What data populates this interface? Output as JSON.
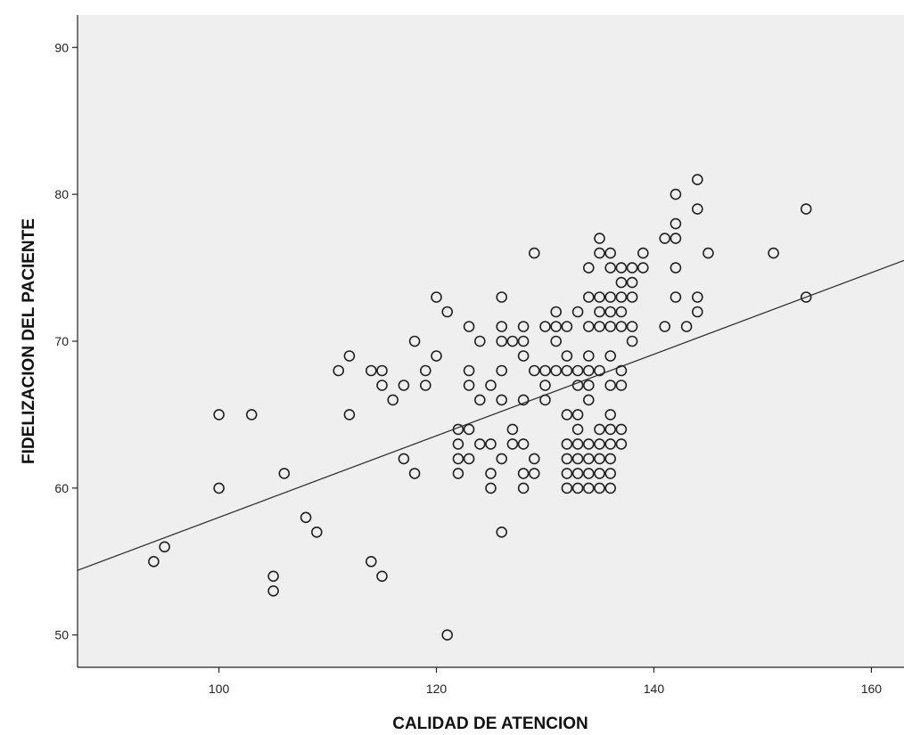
{
  "chart_data": {
    "type": "scatter",
    "title": "",
    "xlabel": "CALIDAD DE ATENCION",
    "ylabel": "FIDELIZACION DEL PACIENTE",
    "xlim": [
      87,
      163
    ],
    "ylim": [
      47.8,
      92.2
    ],
    "x_ticks": [
      100,
      120,
      140,
      160
    ],
    "y_ticks": [
      50,
      60,
      70,
      80,
      90
    ],
    "grid": false,
    "background": "#efefef",
    "fit_line": {
      "x": [
        87,
        163
      ],
      "y": [
        54.4,
        75.5
      ]
    },
    "points": [
      [
        94,
        55
      ],
      [
        95,
        56
      ],
      [
        100,
        65
      ],
      [
        100,
        60
      ],
      [
        103,
        65
      ],
      [
        105,
        54
      ],
      [
        105,
        53
      ],
      [
        106,
        61
      ],
      [
        108,
        58
      ],
      [
        109,
        57
      ],
      [
        111,
        68
      ],
      [
        112,
        69
      ],
      [
        112,
        65
      ],
      [
        114,
        68
      ],
      [
        114,
        55
      ],
      [
        115,
        68
      ],
      [
        115,
        67
      ],
      [
        115,
        54
      ],
      [
        116,
        66
      ],
      [
        117,
        67
      ],
      [
        117,
        62
      ],
      [
        118,
        70
      ],
      [
        118,
        61
      ],
      [
        119,
        68
      ],
      [
        119,
        67
      ],
      [
        120,
        73
      ],
      [
        120,
        69
      ],
      [
        121,
        72
      ],
      [
        121,
        50
      ],
      [
        122,
        64
      ],
      [
        122,
        63
      ],
      [
        122,
        62
      ],
      [
        122,
        61
      ],
      [
        123,
        71
      ],
      [
        123,
        68
      ],
      [
        123,
        67
      ],
      [
        123,
        64
      ],
      [
        123,
        62
      ],
      [
        124,
        70
      ],
      [
        124,
        66
      ],
      [
        124,
        63
      ],
      [
        125,
        67
      ],
      [
        125,
        63
      ],
      [
        125,
        61
      ],
      [
        125,
        60
      ],
      [
        126,
        73
      ],
      [
        126,
        71
      ],
      [
        126,
        70
      ],
      [
        126,
        68
      ],
      [
        126,
        66
      ],
      [
        126,
        62
      ],
      [
        126,
        57
      ],
      [
        127,
        70
      ],
      [
        127,
        64
      ],
      [
        127,
        63
      ],
      [
        128,
        71
      ],
      [
        128,
        70
      ],
      [
        128,
        69
      ],
      [
        128,
        66
      ],
      [
        128,
        63
      ],
      [
        128,
        61
      ],
      [
        128,
        60
      ],
      [
        129,
        76
      ],
      [
        129,
        68
      ],
      [
        129,
        62
      ],
      [
        129,
        61
      ],
      [
        130,
        71
      ],
      [
        130,
        68
      ],
      [
        130,
        67
      ],
      [
        130,
        66
      ],
      [
        131,
        72
      ],
      [
        131,
        71
      ],
      [
        131,
        70
      ],
      [
        131,
        68
      ],
      [
        132,
        71
      ],
      [
        132,
        69
      ],
      [
        132,
        68
      ],
      [
        132,
        65
      ],
      [
        132,
        63
      ],
      [
        132,
        62
      ],
      [
        132,
        61
      ],
      [
        132,
        60
      ],
      [
        133,
        72
      ],
      [
        133,
        68
      ],
      [
        133,
        67
      ],
      [
        133,
        65
      ],
      [
        133,
        64
      ],
      [
        133,
        63
      ],
      [
        133,
        62
      ],
      [
        133,
        61
      ],
      [
        133,
        60
      ],
      [
        134,
        75
      ],
      [
        134,
        73
      ],
      [
        134,
        71
      ],
      [
        134,
        69
      ],
      [
        134,
        68
      ],
      [
        134,
        67
      ],
      [
        134,
        66
      ],
      [
        134,
        63
      ],
      [
        134,
        62
      ],
      [
        134,
        61
      ],
      [
        134,
        60
      ],
      [
        135,
        77
      ],
      [
        135,
        76
      ],
      [
        135,
        73
      ],
      [
        135,
        72
      ],
      [
        135,
        71
      ],
      [
        135,
        68
      ],
      [
        135,
        64
      ],
      [
        135,
        63
      ],
      [
        135,
        62
      ],
      [
        135,
        61
      ],
      [
        135,
        60
      ],
      [
        136,
        76
      ],
      [
        136,
        75
      ],
      [
        136,
        73
      ],
      [
        136,
        72
      ],
      [
        136,
        71
      ],
      [
        136,
        69
      ],
      [
        136,
        67
      ],
      [
        136,
        65
      ],
      [
        136,
        64
      ],
      [
        136,
        63
      ],
      [
        136,
        62
      ],
      [
        136,
        61
      ],
      [
        136,
        60
      ],
      [
        137,
        75
      ],
      [
        137,
        74
      ],
      [
        137,
        73
      ],
      [
        137,
        72
      ],
      [
        137,
        71
      ],
      [
        137,
        68
      ],
      [
        137,
        67
      ],
      [
        137,
        64
      ],
      [
        137,
        63
      ],
      [
        138,
        75
      ],
      [
        138,
        74
      ],
      [
        138,
        73
      ],
      [
        138,
        71
      ],
      [
        138,
        70
      ],
      [
        139,
        76
      ],
      [
        139,
        75
      ],
      [
        141,
        77
      ],
      [
        141,
        71
      ],
      [
        142,
        80
      ],
      [
        142,
        78
      ],
      [
        142,
        77
      ],
      [
        142,
        75
      ],
      [
        142,
        73
      ],
      [
        143,
        71
      ],
      [
        144,
        81
      ],
      [
        144,
        79
      ],
      [
        144,
        73
      ],
      [
        144,
        72
      ],
      [
        145,
        76
      ],
      [
        151,
        76
      ],
      [
        154,
        79
      ],
      [
        154,
        73
      ]
    ]
  }
}
